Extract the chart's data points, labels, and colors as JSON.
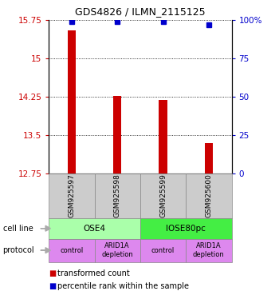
{
  "title": "GDS4826 / ILMN_2115125",
  "samples": [
    "GSM925597",
    "GSM925598",
    "GSM925599",
    "GSM925600"
  ],
  "bar_values": [
    15.55,
    14.27,
    14.18,
    13.35
  ],
  "bar_color": "#cc0000",
  "dot_values": [
    99,
    99,
    99,
    97
  ],
  "dot_color": "#0000cc",
  "ylim": [
    12.75,
    15.75
  ],
  "yticks_left": [
    12.75,
    13.5,
    14.25,
    15.0,
    15.75
  ],
  "yticks_right": [
    0,
    25,
    50,
    75,
    100
  ],
  "ytick_labels_left": [
    "12.75",
    "13.5",
    "14.25",
    "15",
    "15.75"
  ],
  "ytick_labels_right": [
    "0",
    "25",
    "50",
    "75",
    "100%"
  ],
  "left_tick_color": "#cc0000",
  "right_tick_color": "#0000cc",
  "cell_line_labels": [
    "OSE4",
    "IOSE80pc"
  ],
  "cell_line_colors": [
    "#aaffaa",
    "#44ee44"
  ],
  "cell_line_spans": [
    [
      0,
      2
    ],
    [
      2,
      4
    ]
  ],
  "protocol_labels": [
    "control",
    "ARID1A\ndepletion",
    "control",
    "ARID1A\ndepletion"
  ],
  "protocol_color": "#dd88ee",
  "sample_box_color": "#cccccc",
  "legend_red_label": "transformed count",
  "legend_blue_label": "percentile rank within the sample",
  "bar_width": 0.18,
  "dot_size": 5
}
